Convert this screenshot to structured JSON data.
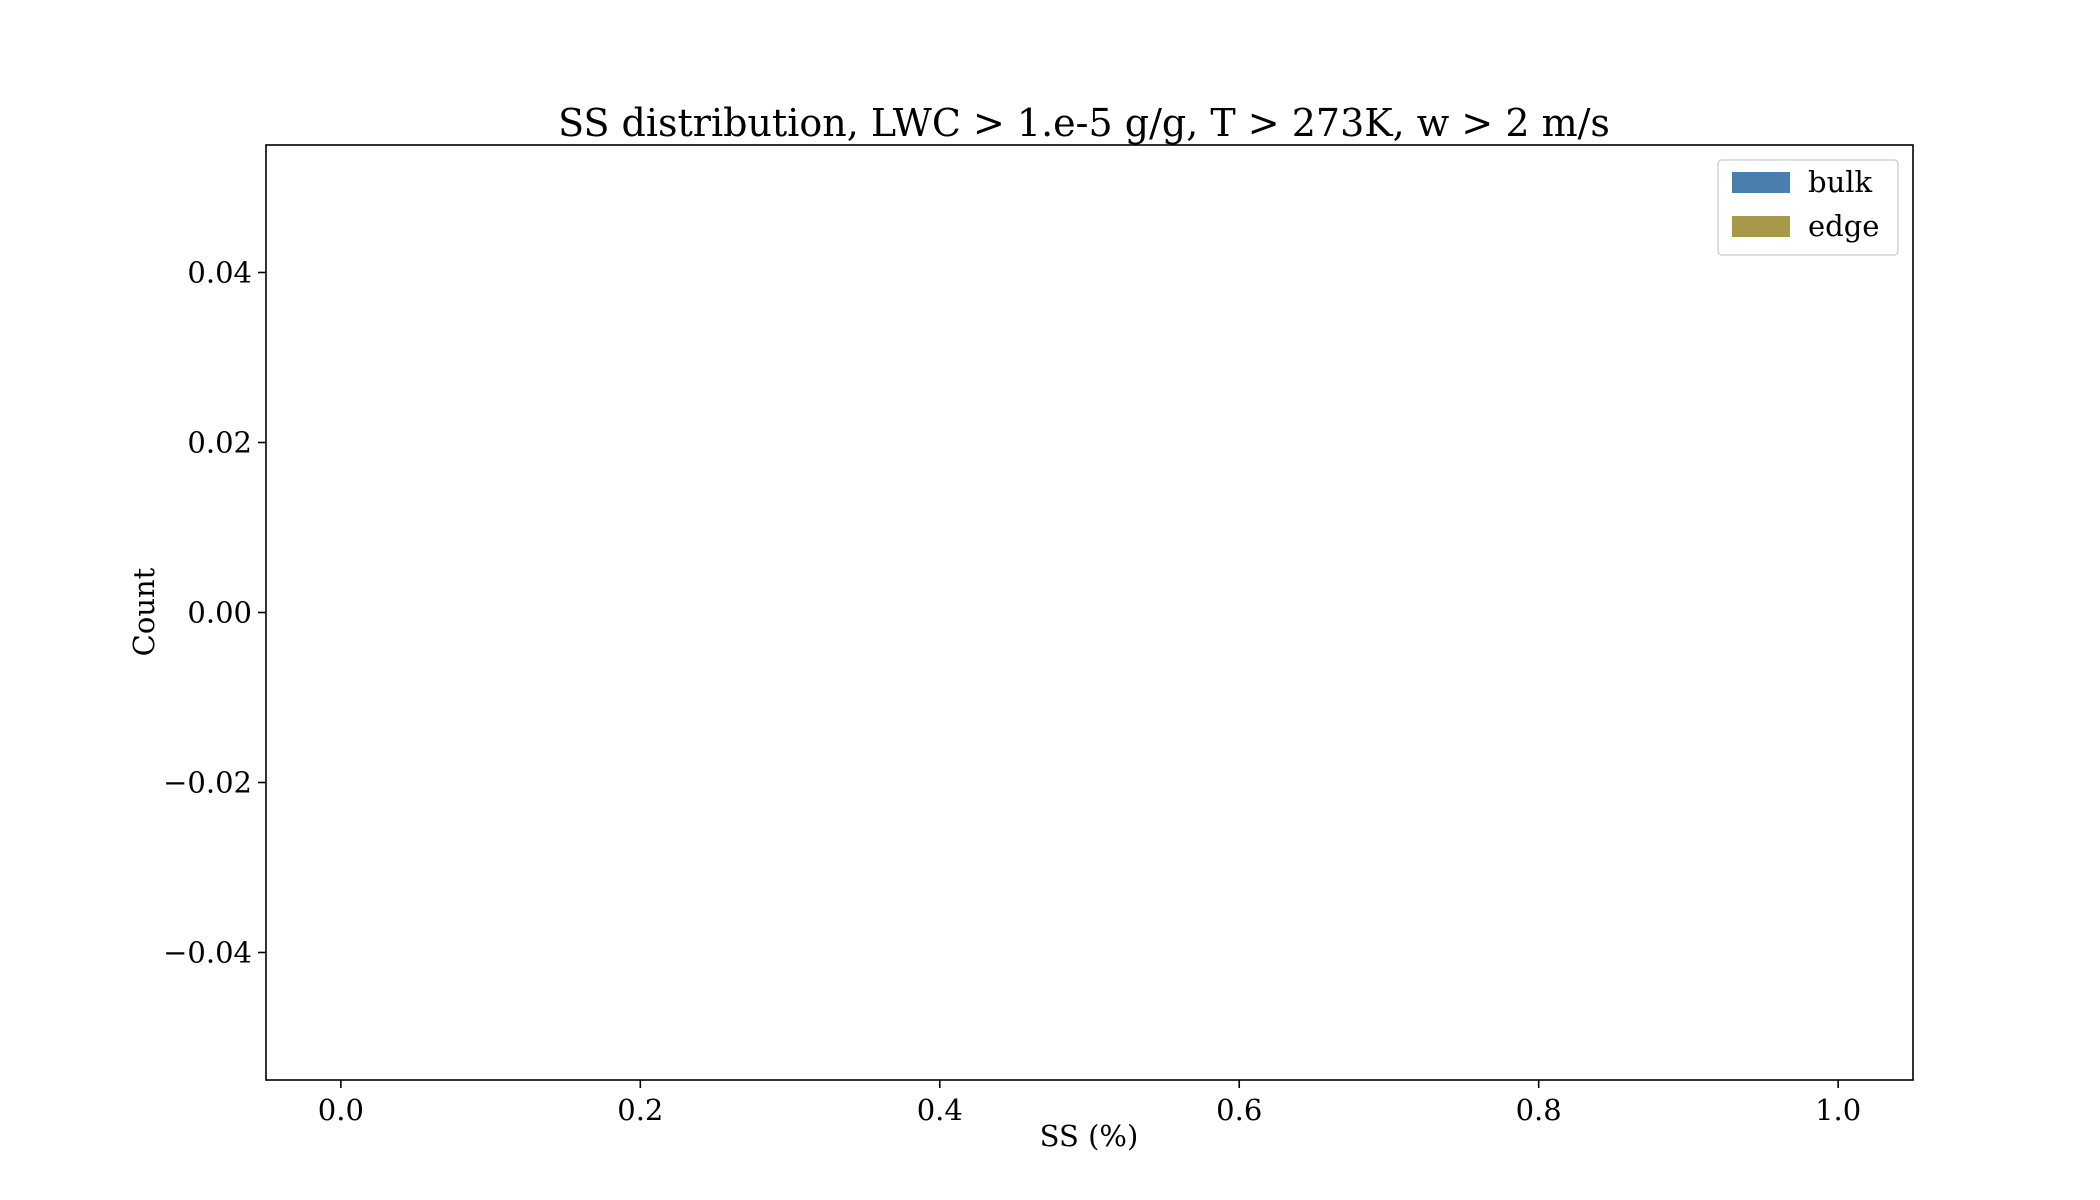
{
  "chart_data": {
    "type": "bar",
    "title": "SS distribution, LWC > 1.e-5 g/g, T > 273K, w > 2 m/s",
    "xlabel": "SS (%)",
    "ylabel": "Count",
    "xlim": [
      -0.05,
      1.05
    ],
    "ylim": [
      -0.055,
      0.055
    ],
    "x_ticks": [
      0.0,
      0.2,
      0.4,
      0.6,
      0.8,
      1.0
    ],
    "x_tick_labels": [
      "0.0",
      "0.2",
      "0.4",
      "0.6",
      "0.8",
      "1.0"
    ],
    "y_ticks": [
      0.04,
      0.02,
      0.0,
      -0.02,
      -0.04
    ],
    "y_tick_labels": [
      "0.04",
      "0.02",
      "0.00",
      "−0.02",
      "−0.04"
    ],
    "grid": false,
    "legend_position": "top-right",
    "series": [
      {
        "name": "bulk",
        "color": "#4a7fad",
        "values": []
      },
      {
        "name": "edge",
        "color": "#a8994a",
        "values": []
      }
    ]
  }
}
